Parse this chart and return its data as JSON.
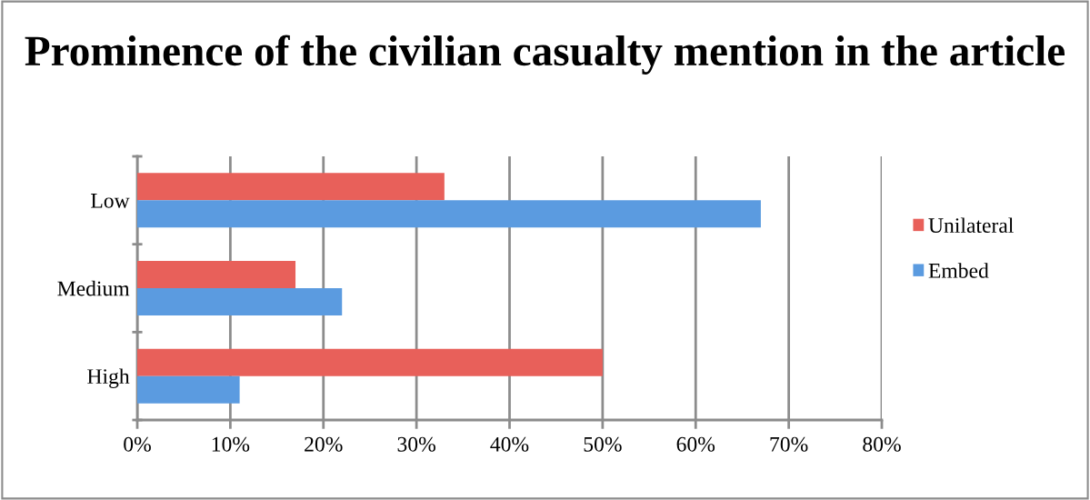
{
  "chart_data": {
    "type": "bar",
    "orientation": "horizontal",
    "title": "Prominence of the civilian casualty mention in the article",
    "categories": [
      "Low",
      "Medium",
      "High"
    ],
    "series": [
      {
        "name": "Unilateral",
        "color": "#e8605a",
        "values": [
          33,
          17,
          50
        ]
      },
      {
        "name": "Embed",
        "color": "#5b9be0",
        "values": [
          67,
          22,
          11
        ]
      }
    ],
    "xlim": [
      0,
      80
    ],
    "xticks": [
      {
        "value": 0,
        "label": "0%"
      },
      {
        "value": 10,
        "label": "10%"
      },
      {
        "value": 20,
        "label": "20%"
      },
      {
        "value": 30,
        "label": "30%"
      },
      {
        "value": 40,
        "label": "40%"
      },
      {
        "value": 50,
        "label": "50%"
      },
      {
        "value": 60,
        "label": "60%"
      },
      {
        "value": 70,
        "label": "70%"
      },
      {
        "value": 80,
        "label": "80%"
      }
    ],
    "grid": "x",
    "legend": "right"
  }
}
